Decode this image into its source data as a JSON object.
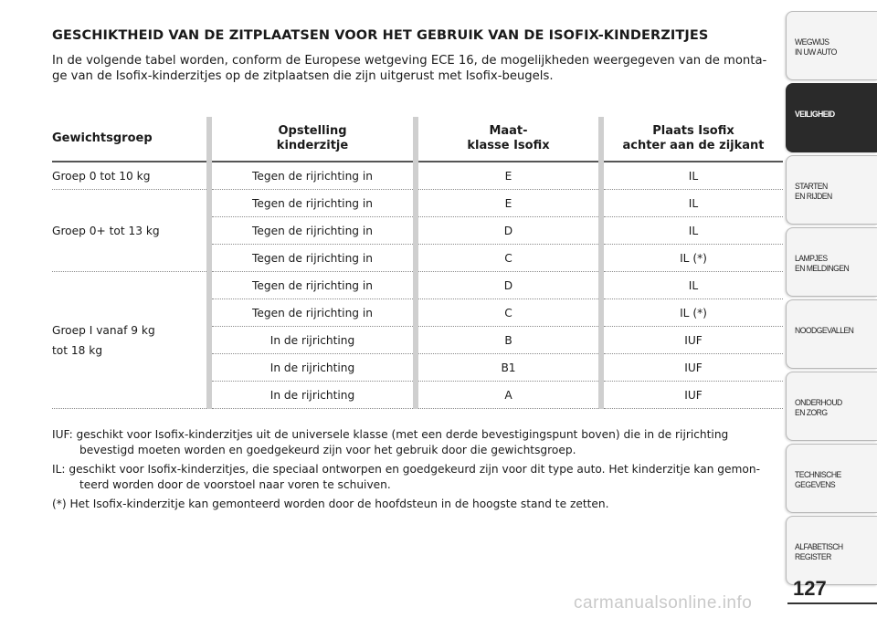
{
  "title": "GESCHIKTHEID VAN DE ZITPLAATSEN VOOR HET GEBRUIK VAN DE ISOFIX-KINDERZITJES",
  "intro": "In de volgende tabel worden, conform de Europese wetgeving ECE 16, de mogelijkheden weergegeven van de monta-ge van de Isofix-kinderzitjes op de zitplaatsen die zijn uitgerust met Isofix-beugels.",
  "table": {
    "headers": {
      "group": "Gewichtsgroep",
      "position_1": "Opstelling",
      "position_2": "kinderzitje",
      "size_1": "Maat-",
      "size_2": "klasse Isofix",
      "place_1": "Plaats Isofix",
      "place_2": "achter aan de zijkant"
    },
    "groups": {
      "g0": "Groep 0 tot 10 kg",
      "g0plus": "Groep 0+ tot 13 kg",
      "g1_line1": "Groep I vanaf 9 kg",
      "g1_line2": "tot 18 kg"
    },
    "rows": [
      {
        "position": "Tegen de rijrichting in",
        "size": "E",
        "place": "IL"
      },
      {
        "position": "Tegen de rijrichting in",
        "size": "E",
        "place": "IL"
      },
      {
        "position": "Tegen de rijrichting in",
        "size": "D",
        "place": "IL"
      },
      {
        "position": "Tegen de rijrichting in",
        "size": "C",
        "place": "IL (*)"
      },
      {
        "position": "Tegen de rijrichting in",
        "size": "D",
        "place": "IL"
      },
      {
        "position": "Tegen de rijrichting in",
        "size": "C",
        "place": "IL (*)"
      },
      {
        "position": "In de rijrichting",
        "size": "B",
        "place": "IUF"
      },
      {
        "position": "In de rijrichting",
        "size": "B1",
        "place": "IUF"
      },
      {
        "position": "In de rijrichting",
        "size": "A",
        "place": "IUF"
      }
    ]
  },
  "notes": {
    "iuf": "IUF: geschikt voor Isofix-kinderzitjes uit de universele klasse (met een derde bevestigingspunt boven) die in de rijrichting bevestigd moeten worden en goedgekeurd zijn voor het gebruik door die gewichtsgroep.",
    "il": "IL: geschikt voor Isofix-kinderzitjes, die speciaal ontworpen en goedgekeurd zijn voor dit type auto. Het kinderzitje kan gemon-teerd worden door de voorstoel naar voren te schuiven.",
    "star": "(*) Het Isofix-kinderzitje kan gemonteerd worden door de hoofdsteun in de hoogste stand te zetten."
  },
  "sidebar": [
    {
      "label": "WEGWIJS\nIN UW AUTO",
      "active": false
    },
    {
      "label": "VEILIGHEID",
      "active": true
    },
    {
      "label": "STARTEN\nEN RIJDEN",
      "active": false
    },
    {
      "label": "LAMPJES\nEN MELDINGEN",
      "active": false
    },
    {
      "label": "NOODGEVALLEN",
      "active": false
    },
    {
      "label": "ONDERHOUD\nEN ZORG",
      "active": false
    },
    {
      "label": "TECHNISCHE\nGEGEVENS",
      "active": false
    },
    {
      "label": "ALFABETISCH\nREGISTER",
      "active": false
    }
  ],
  "page_number": "127",
  "watermark": "carmanualsonline.info"
}
